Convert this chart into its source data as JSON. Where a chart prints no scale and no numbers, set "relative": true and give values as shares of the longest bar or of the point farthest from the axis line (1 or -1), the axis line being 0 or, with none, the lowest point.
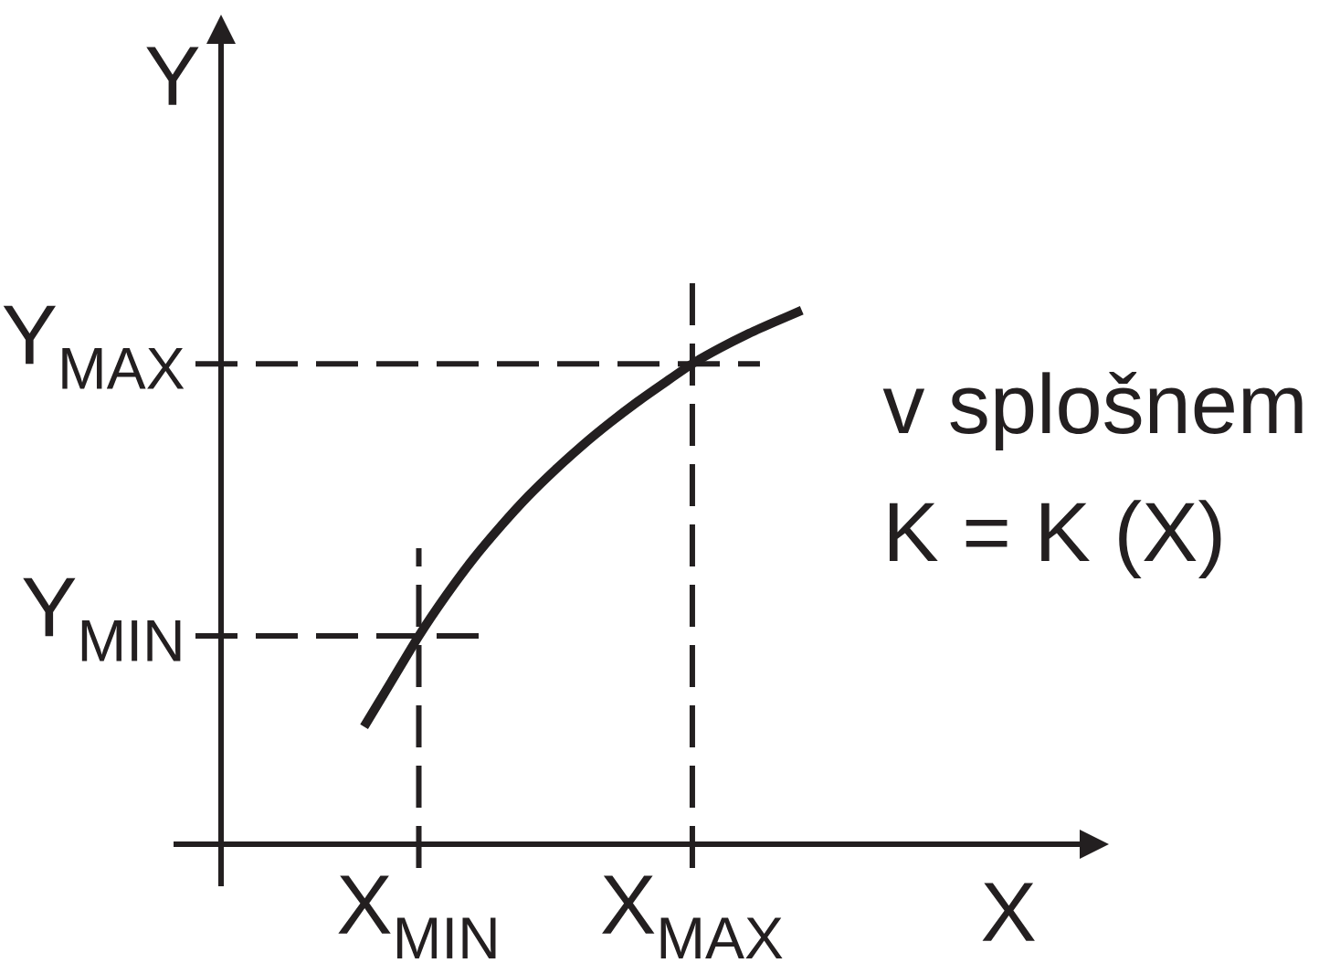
{
  "chart_data": {
    "type": "line",
    "xlabel": "X",
    "ylabel": "Y",
    "relative": true,
    "categories": [
      null,
      null,
      null,
      null,
      null,
      null,
      null,
      "X$_{MIN}$",
      null,
      null,
      null,
      null,
      null,
      null,
      null,
      null,
      null,
      "X$_{MAX}$",
      null,
      null,
      null,
      null,
      null,
      null,
      null,
      null,
      null,
      null,
      null,
      null,
      null,
      null,
      null
    ],
    "series": [
      {
        "color": "#231f20",
        "values": [
          null,
          null,
          null,
          null,
          null,
          0.22,
          0.305,
          0.39,
          0.466,
          0.535,
          0.596,
          0.652,
          0.702,
          0.748,
          0.79,
          0.829,
          0.865,
          0.9,
          0.929,
          0.955,
          0.978,
          1.0,
          null,
          null,
          null,
          null,
          null,
          null,
          null,
          null,
          null,
          null,
          null
        ]
      }
    ],
    "ref_lines": [
      {
        "axis": "x",
        "value": "X$_{MIN}$",
        "color": "#231f20",
        "line_style": "dashed"
      },
      {
        "axis": "x",
        "value": "X$_{MAX}$",
        "color": "#231f20",
        "line_style": "dashed"
      },
      {
        "axis": "y",
        "value": 0.39,
        "label": "Y$_{MIN}$",
        "color": "#231f20",
        "line_style": "dashed"
      },
      {
        "axis": "y",
        "value": 0.9,
        "label": "Y$_{MAX}$",
        "color": "#231f20",
        "line_style": "dashed"
      }
    ],
    "annotations": [
      "v splošnem",
      "K  = K (X)"
    ]
  }
}
